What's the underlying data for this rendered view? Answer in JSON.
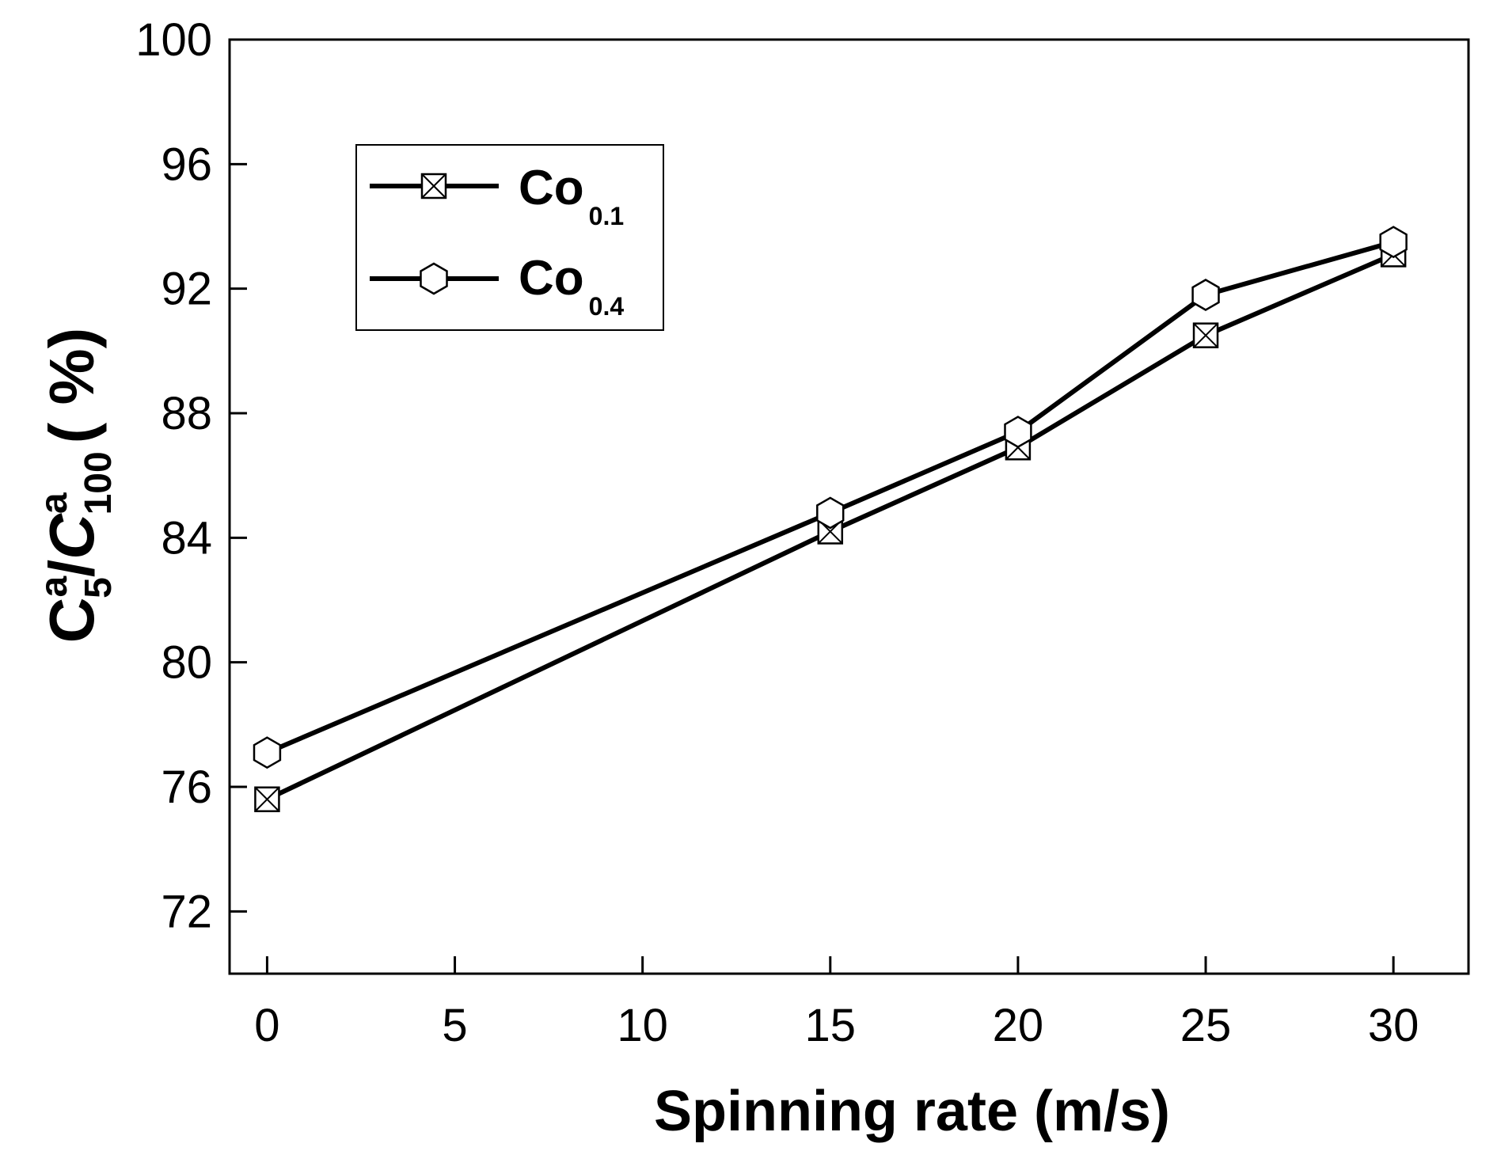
{
  "chart_data": {
    "type": "line",
    "title": "",
    "xlabel": "Spinning rate (m/s)",
    "ylabel": {
      "c1": "C",
      "sup1": "a",
      "sub1": "5",
      "slash": "/",
      "c2": "C",
      "sup2": "a",
      "sub2": "100",
      "unit": "( %)"
    },
    "xlim": [
      -1,
      32
    ],
    "ylim": [
      70,
      100
    ],
    "xticks": [
      0,
      5,
      10,
      15,
      20,
      25,
      30
    ],
    "yticks": [
      72,
      76,
      80,
      84,
      88,
      92,
      96,
      100
    ],
    "x": [
      0,
      15,
      20,
      25,
      30
    ],
    "series": [
      {
        "name": "Co0.1",
        "label_main": "Co",
        "label_sub": "0.1",
        "marker": "crossed-square",
        "values": [
          75.6,
          84.2,
          86.9,
          90.5,
          93.1
        ]
      },
      {
        "name": "Co0.4",
        "label_main": "Co",
        "label_sub": "0.4",
        "marker": "hexagon",
        "values": [
          77.1,
          84.8,
          87.4,
          91.8,
          93.5
        ]
      }
    ],
    "legend_position": "top-left",
    "colors": {
      "line": "#000000",
      "marker_fill": "#ffffff"
    }
  }
}
